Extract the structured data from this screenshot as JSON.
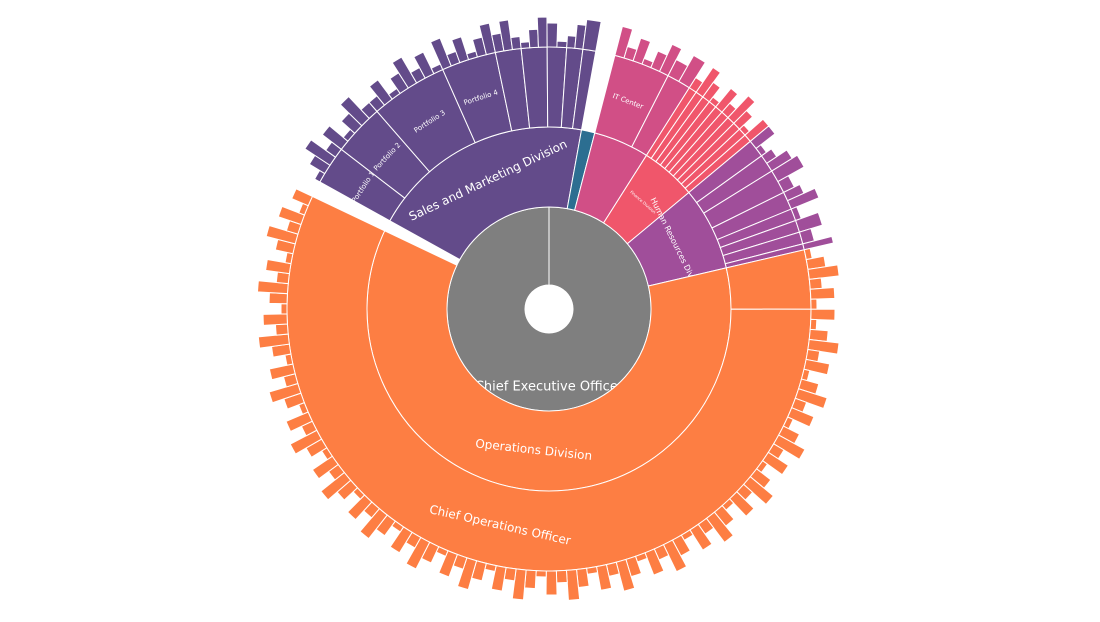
{
  "chart_data": {
    "type": "sunburst",
    "root": {
      "label": "Chief Executive Officer",
      "color": "#7f7f7f"
    },
    "divisions": [
      {
        "label": "Sales and Marketing Division",
        "color": "#634b8a",
        "share": 0.2,
        "children": [
          {
            "label": "Portfolio 1",
            "share": 0.12
          },
          {
            "label": "Portfolio 2",
            "share": 0.16
          },
          {
            "label": "Portfolio 3",
            "share": 0.24
          },
          {
            "label": "Portfolio 4",
            "share": 0.17
          },
          {
            "label": "",
            "share": 0.08
          },
          {
            "label": "",
            "share": 0.08
          },
          {
            "label": "",
            "share": 0.06
          },
          {
            "label": "",
            "share": 0.05
          },
          {
            "label": "",
            "share": 0.04
          }
        ]
      },
      {
        "label": "",
        "color": "#2c6e91",
        "share": 0.012,
        "children": []
      },
      {
        "label": "",
        "color": "#d14f86",
        "share": 0.05,
        "children": [
          {
            "label": "IT Center",
            "share": 0.7
          },
          {
            "label": "",
            "share": 0.3
          }
        ]
      },
      {
        "label": "Finance Division",
        "color": "#f0566b",
        "share": 0.05,
        "children": [
          {
            "label": "",
            "share": 0.1
          },
          {
            "label": "",
            "share": 0.1
          },
          {
            "label": "",
            "share": 0.1
          },
          {
            "label": "",
            "share": 0.1
          },
          {
            "label": "",
            "share": 0.1
          },
          {
            "label": "",
            "share": 0.1
          },
          {
            "label": "",
            "share": 0.1
          },
          {
            "label": "",
            "share": 0.1
          },
          {
            "label": "",
            "share": 0.1
          },
          {
            "label": "",
            "share": 0.1
          }
        ]
      },
      {
        "label": "Human Resources Division",
        "color": "#a04e9a",
        "share": 0.075,
        "children": [
          {
            "label": "",
            "share": 0.15
          },
          {
            "label": "",
            "share": 0.15
          },
          {
            "label": "",
            "share": 0.2
          },
          {
            "label": "",
            "share": 0.15
          },
          {
            "label": "",
            "share": 0.1
          },
          {
            "label": "",
            "share": 0.1
          },
          {
            "label": "",
            "share": 0.1
          },
          {
            "label": "",
            "share": 0.05
          }
        ]
      },
      {
        "label": "Operations Division",
        "color": "#fd7e43",
        "share": 0.613,
        "children": [
          {
            "label": "",
            "share": 0.06
          },
          {
            "label": "Chief Operations Officer",
            "share": 0.94
          }
        ]
      }
    ],
    "gap_share": 0.01
  }
}
